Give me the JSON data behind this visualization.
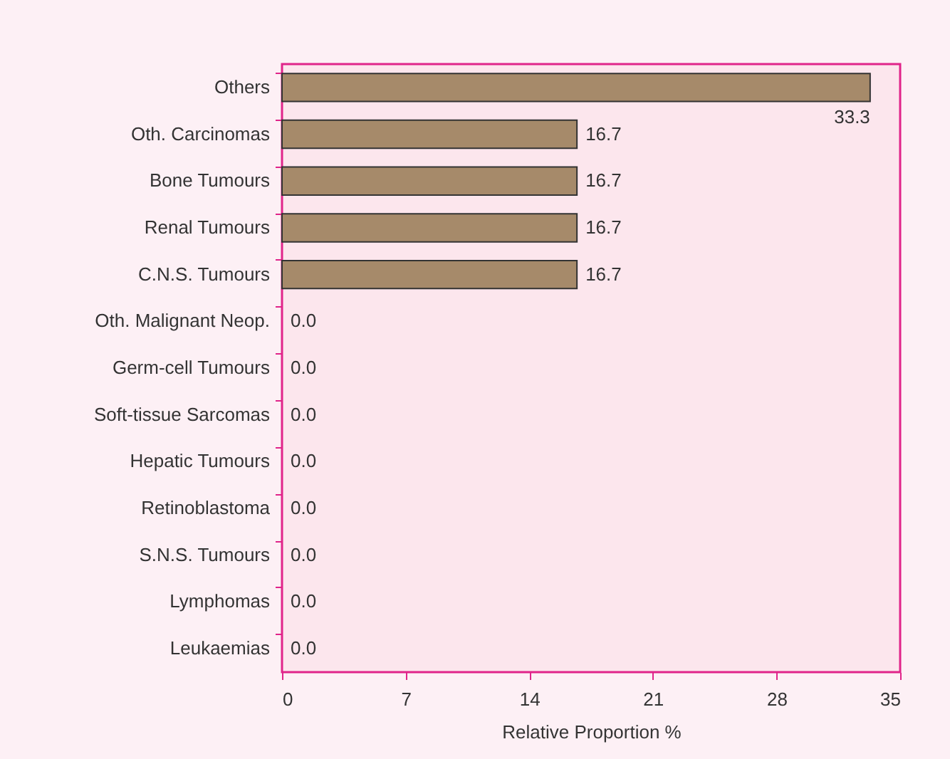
{
  "chart_data": {
    "type": "bar",
    "orientation": "horizontal",
    "xlabel": "Relative Proportion %",
    "categories": [
      "Others",
      "Oth. Carcinomas",
      "Bone Tumours",
      "Renal Tumours",
      "C.N.S. Tumours",
      "Oth. Malignant Neop.",
      "Germ-cell Tumours",
      "Soft-tissue Sarcomas",
      "Hepatic Tumours",
      "Retinoblastoma",
      "S.N.S. Tumours",
      "Lymphomas",
      "Leukaemias"
    ],
    "values": [
      33.3,
      16.7,
      16.7,
      16.7,
      16.7,
      0.0,
      0.0,
      0.0,
      0.0,
      0.0,
      0.0,
      0.0,
      0.0
    ],
    "value_labels": [
      "33.3",
      "16.7",
      "16.7",
      "16.7",
      "16.7",
      "0.0",
      "0.0",
      "0.0",
      "0.0",
      "0.0",
      "0.0",
      "0.0",
      "0.0"
    ],
    "color": "#a68a6a",
    "xlim": [
      0,
      35
    ],
    "xticks": [
      0,
      7,
      14,
      21,
      28,
      35
    ],
    "grid": false
  }
}
